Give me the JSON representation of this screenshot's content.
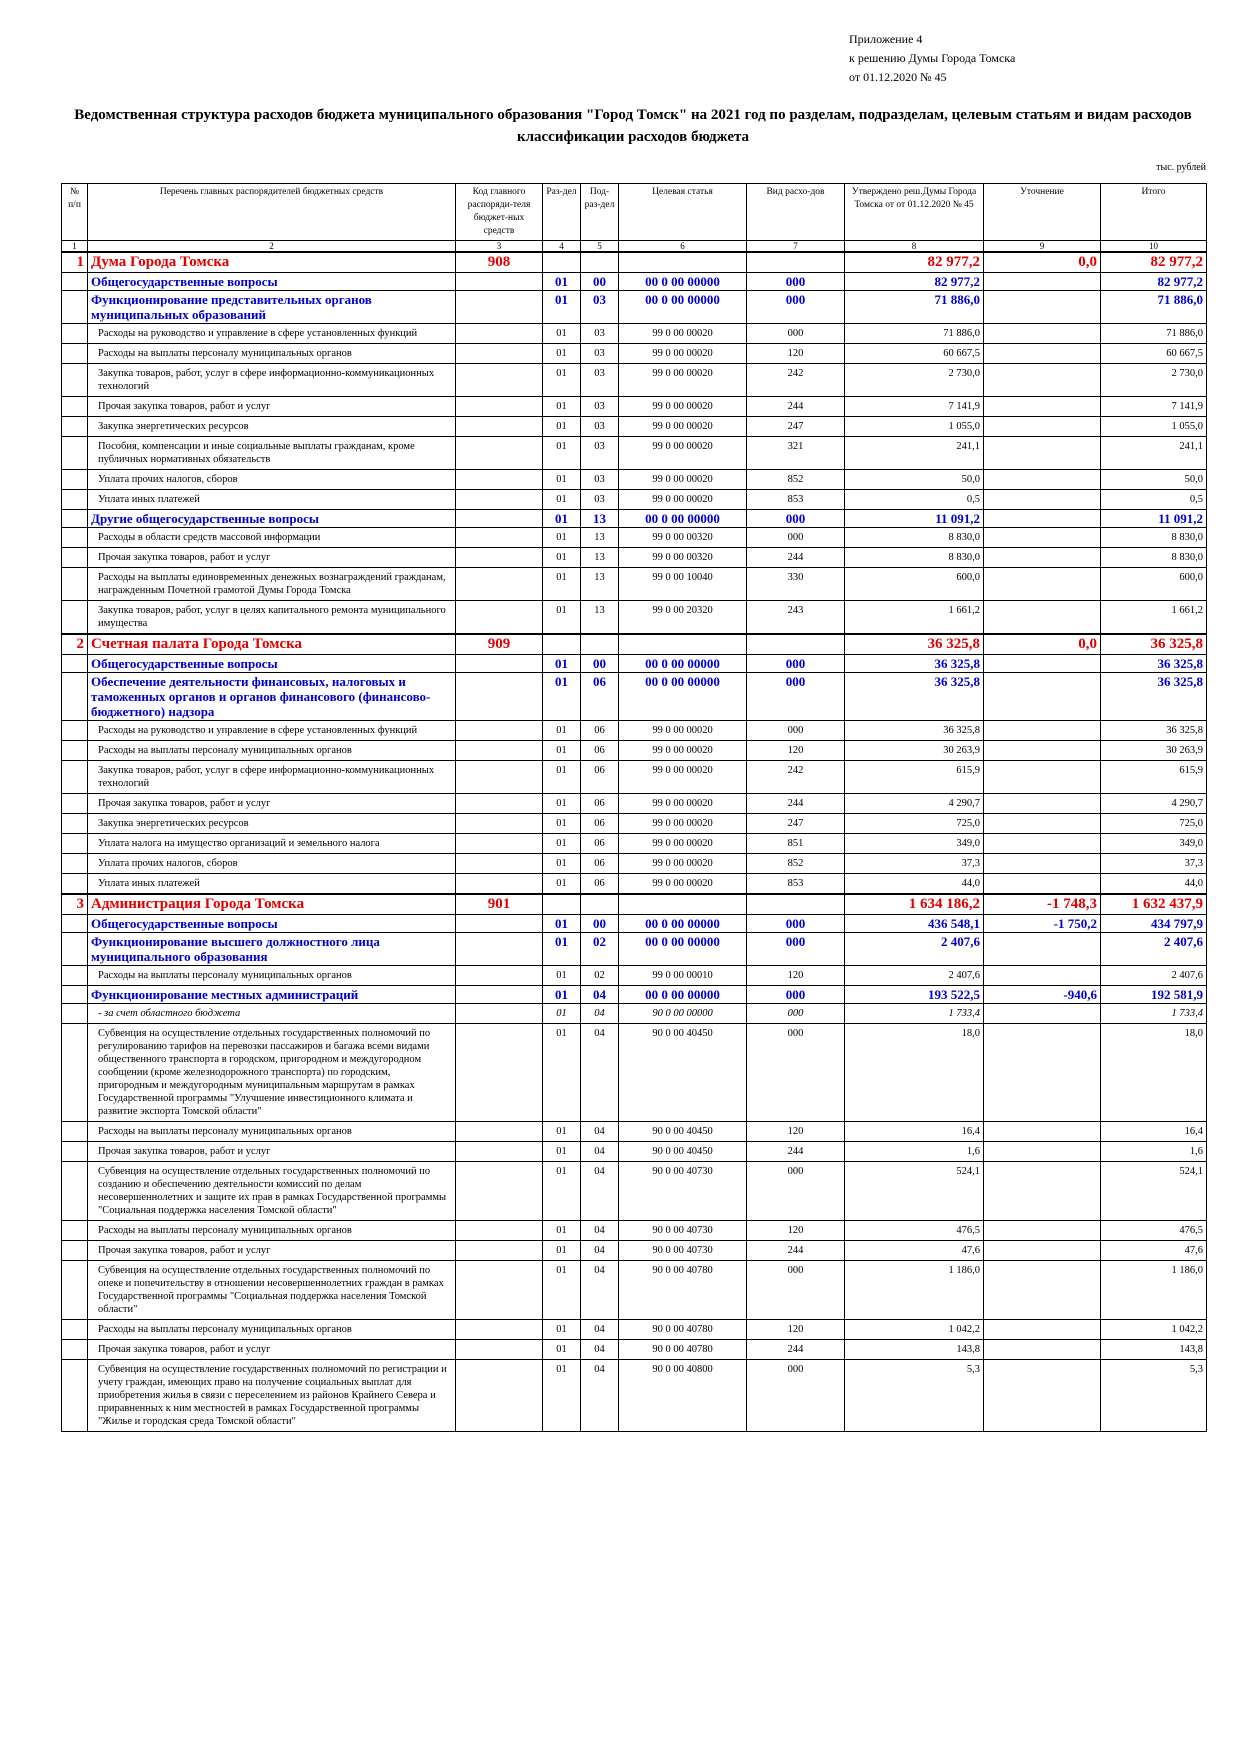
{
  "header": {
    "lines": [
      "Приложение 4",
      "к решению Думы Города Томска",
      "от 01.12.2020 № 45"
    ],
    "title": "Ведомственная структура расходов бюджета муниципального образования \"Город Томск\" на 2021 год по разделам, подразделам, целевым статьям и видам расходов классификации расходов бюджета",
    "unit": "тыс. рублей"
  },
  "table": {
    "columns": [
      "№ п/п",
      "Перечень главных распорядителей бюджетных средств",
      "Код главного распоряди-теля бюджет-ных средств",
      "Раз-дел",
      "Под-раз-дел",
      "Целевая статья",
      "Вид расхо-дов",
      "Утверждено реш.Думы Города Томска от от 01.12.2020 № 45",
      "Уточнение",
      "Итого"
    ],
    "column_numbers": [
      1,
      2,
      3,
      4,
      5,
      6,
      7,
      8,
      9,
      10
    ],
    "rows": [
      {
        "color": "#e00000",
        "cells": [
          "1",
          "Дума Города Томска",
          "908",
          null,
          null,
          null,
          null,
          "82 977,2",
          "0,0",
          "82 977,2"
        ]
      },
      {
        "color": "#0000cc",
        "cells": [
          null,
          "Общегосударственные вопросы",
          null,
          "01",
          "00",
          "00 0 00 00000",
          "000",
          "82 977,2",
          null,
          "82 977,2"
        ]
      },
      {
        "color": "#0000cc",
        "cells": [
          null,
          "Функционирование представительных органов муниципальных образований",
          null,
          "01",
          "03",
          "00 0 00 00000",
          "000",
          "71 886,0",
          null,
          "71 886,0"
        ]
      },
      {
        "cells": [
          null,
          "Расходы на руководство и управление в сфере установленных функций",
          null,
          "01",
          "03",
          "99 0 00 00020",
          "000",
          "71 886,0",
          null,
          "71 886,0"
        ]
      },
      {
        "cells": [
          null,
          "Расходы на выплаты персоналу муниципальных органов",
          null,
          "01",
          "03",
          "99 0 00 00020",
          "120",
          "60 667,5",
          null,
          "60 667,5"
        ]
      },
      {
        "cells": [
          null,
          "Закупка товаров, работ, услуг в сфере информационно-коммуникационных технологий",
          null,
          "01",
          "03",
          "99 0 00 00020",
          "242",
          "2 730,0",
          null,
          "2 730,0"
        ]
      },
      {
        "cells": [
          null,
          "Прочая закупка товаров, работ и услуг",
          null,
          "01",
          "03",
          "99 0 00 00020",
          "244",
          "7 141,9",
          null,
          "7 141,9"
        ]
      },
      {
        "cells": [
          null,
          "Закупка энергетических ресурсов",
          null,
          "01",
          "03",
          "99 0 00 00020",
          "247",
          "1 055,0",
          null,
          "1 055,0"
        ]
      },
      {
        "cells": [
          null,
          "Пособия, компенсации и иные социальные выплаты гражданам, кроме публичных нормативных обязательств",
          null,
          "01",
          "03",
          "99 0 00 00020",
          "321",
          "241,1",
          null,
          "241,1"
        ]
      },
      {
        "cells": [
          null,
          "Уплата прочих налогов, сборов",
          null,
          "01",
          "03",
          "99 0 00 00020",
          "852",
          "50,0",
          null,
          "50,0"
        ]
      },
      {
        "cells": [
          null,
          "Уплата иных платежей",
          null,
          "01",
          "03",
          "99 0 00 00020",
          "853",
          "0,5",
          null,
          "0,5"
        ]
      },
      {
        "color": "#0000cc",
        "cells": [
          null,
          "Другие общегосударственные вопросы",
          null,
          "01",
          "13",
          "00 0 00 00000",
          "000",
          "11 091,2",
          null,
          "11 091,2"
        ]
      },
      {
        "cells": [
          null,
          "Расходы в области средств массовой информации",
          null,
          "01",
          "13",
          "99 0 00 00320",
          "000",
          "8 830,0",
          null,
          "8 830,0"
        ]
      },
      {
        "cells": [
          null,
          "Прочая закупка товаров, работ и услуг",
          null,
          "01",
          "13",
          "99 0 00 00320",
          "244",
          "8 830,0",
          null,
          "8 830,0"
        ]
      },
      {
        "cells": [
          null,
          "Расходы на выплаты единовременных денежных вознаграждений гражданам, награжденным Почетной грамотой Думы Города Томска",
          null,
          "01",
          "13",
          "99 0 00 10040",
          "330",
          "600,0",
          null,
          "600,0"
        ]
      },
      {
        "cells": [
          null,
          "Закупка товаров, работ, услуг в целях капитального ремонта муниципального имущества",
          null,
          "01",
          "13",
          "99 0 00 20320",
          "243",
          "1 661,2",
          null,
          "1 661,2"
        ]
      },
      {
        "color": "#e00000",
        "cells": [
          "2",
          "Счетная палата Города Томска",
          "909",
          null,
          null,
          null,
          null,
          "36 325,8",
          "0,0",
          "36 325,8"
        ]
      },
      {
        "color": "#0000cc",
        "cells": [
          null,
          "Общегосударственные вопросы",
          null,
          "01",
          "00",
          "00 0 00 00000",
          "000",
          "36 325,8",
          null,
          "36 325,8"
        ]
      },
      {
        "color": "#0000cc",
        "cells": [
          null,
          "Обеспечение деятельности финансовых, налоговых и таможенных органов и органов финансового (финансово-бюджетного) надзора",
          null,
          "01",
          "06",
          "00 0 00 00000",
          "000",
          "36 325,8",
          null,
          "36 325,8"
        ]
      },
      {
        "cells": [
          null,
          "Расходы на руководство и управление в сфере установленных функций",
          null,
          "01",
          "06",
          "99 0 00 00020",
          "000",
          "36 325,8",
          null,
          "36 325,8"
        ]
      },
      {
        "cells": [
          null,
          "Расходы на выплаты персоналу муниципальных органов",
          null,
          "01",
          "06",
          "99 0 00 00020",
          "120",
          "30 263,9",
          null,
          "30 263,9"
        ]
      },
      {
        "cells": [
          null,
          "Закупка товаров, работ, услуг в сфере информационно-коммуникационных технологий",
          null,
          "01",
          "06",
          "99 0 00 00020",
          "242",
          "615,9",
          null,
          "615,9"
        ]
      },
      {
        "cells": [
          null,
          "Прочая закупка товаров, работ и услуг",
          null,
          "01",
          "06",
          "99 0 00 00020",
          "244",
          "4 290,7",
          null,
          "4 290,7"
        ]
      },
      {
        "cells": [
          null,
          "Закупка энергетических ресурсов",
          null,
          "01",
          "06",
          "99 0 00 00020",
          "247",
          "725,0",
          null,
          "725,0"
        ]
      },
      {
        "cells": [
          null,
          "Уплата налога на имущество организаций и земельного налога",
          null,
          "01",
          "06",
          "99 0 00 00020",
          "851",
          "349,0",
          null,
          "349,0"
        ]
      },
      {
        "cells": [
          null,
          "Уплата прочих налогов, сборов",
          null,
          "01",
          "06",
          "99 0 00 00020",
          "852",
          "37,3",
          null,
          "37,3"
        ]
      },
      {
        "cells": [
          null,
          "Уплата иных платежей",
          null,
          "01",
          "06",
          "99 0 00 00020",
          "853",
          "44,0",
          null,
          "44,0"
        ]
      },
      {
        "color": "#e00000",
        "cells": [
          "3",
          "Администрация Города Томска",
          "901",
          null,
          null,
          null,
          null,
          "1 634 186,2",
          "-1 748,3",
          "1 632 437,9"
        ]
      },
      {
        "color": "#0000cc",
        "cells": [
          null,
          "Общегосударственные вопросы",
          null,
          "01",
          "00",
          "00 0 00 00000",
          "000",
          "436 548,1",
          "-1 750,2",
          "434 797,9"
        ]
      },
      {
        "color": "#0000cc",
        "cells": [
          null,
          "Функционирование высшего должностного лица муниципального образования",
          null,
          "01",
          "02",
          "00 0 00 00000",
          "000",
          "2 407,6",
          null,
          "2 407,6"
        ]
      },
      {
        "cells": [
          null,
          "Расходы на выплаты персоналу муниципальных органов",
          null,
          "01",
          "02",
          "99 0 00 00010",
          "120",
          "2 407,6",
          null,
          "2 407,6"
        ]
      },
      {
        "color": "#0000cc",
        "cells": [
          null,
          "Функционирование местных администраций",
          null,
          "01",
          "04",
          "00 0 00 00000",
          "000",
          "193 522,5",
          "-940,6",
          "192 581,9"
        ]
      },
      {
        "italic": true,
        "cells": [
          null,
          "- за счет областного бюджета",
          null,
          "01",
          "04",
          "90 0 00 00000",
          "000",
          "1 733,4",
          null,
          "1 733,4"
        ]
      },
      {
        "cells": [
          null,
          "Субвенция на осуществление отдельных государственных полномочий по регулированию тарифов на перевозки пассажиров и багажа всеми видами общественного транспорта в городском, пригородном и междугородном сообщении (кроме железнодорожного транспорта) по городским, пригородным и междугородным муниципальным маршрутам в рамках Государственной программы \"Улучшение инвестиционного климата и развитие экспорта Томской области\"",
          null,
          "01",
          "04",
          "90 0 00 40450",
          "000",
          "18,0",
          null,
          "18,0"
        ]
      },
      {
        "cells": [
          null,
          "Расходы на выплаты персоналу муниципальных органов",
          null,
          "01",
          "04",
          "90 0 00 40450",
          "120",
          "16,4",
          null,
          "16,4"
        ]
      },
      {
        "cells": [
          null,
          "Прочая закупка товаров, работ и услуг",
          null,
          "01",
          "04",
          "90 0 00 40450",
          "244",
          "1,6",
          null,
          "1,6"
        ]
      },
      {
        "cells": [
          null,
          "Субвенция на осуществление отдельных государственных полномочий по созданию и обеспечению деятельности комиссий по делам несовершеннолетних и защите их прав в рамках Государственной программы \"Социальная поддержка населения Томской области\"",
          null,
          "01",
          "04",
          "90 0 00 40730",
          "000",
          "524,1",
          null,
          "524,1"
        ]
      },
      {
        "cells": [
          null,
          "Расходы на выплаты персоналу муниципальных органов",
          null,
          "01",
          "04",
          "90 0 00 40730",
          "120",
          "476,5",
          null,
          "476,5"
        ]
      },
      {
        "cells": [
          null,
          "Прочая закупка товаров, работ и услуг",
          null,
          "01",
          "04",
          "90 0 00 40730",
          "244",
          "47,6",
          null,
          "47,6"
        ]
      },
      {
        "cells": [
          null,
          "Субвенция на осуществление отдельных государственных полномочий по опеке и попечительству в отношении несовершеннолетних граждан в рамках Государственной программы \"Социальная поддержка населения Томской области\"",
          null,
          "01",
          "04",
          "90 0 00 40780",
          "000",
          "1 186,0",
          null,
          "1 186,0"
        ]
      },
      {
        "cells": [
          null,
          "Расходы на выплаты персоналу муниципальных органов",
          null,
          "01",
          "04",
          "90 0 00 40780",
          "120",
          "1 042,2",
          null,
          "1 042,2"
        ]
      },
      {
        "cells": [
          null,
          "Прочая закупка товаров, работ и услуг",
          null,
          "01",
          "04",
          "90 0 00 40780",
          "244",
          "143,8",
          null,
          "143,8"
        ]
      },
      {
        "cells": [
          null,
          "Субвенция на осуществление государственных полномочий по регистрации и учету граждан, имеющих право на получение социальных выплат для приобретения жилья в связи с переселением из районов Крайнего Севера и приравненных к ним местностей в рамках Государственной программы \"Жилье и городская среда Томской области\"",
          null,
          "01",
          "04",
          "90 0 00 40800",
          "000",
          "5,3",
          null,
          "5,3"
        ]
      }
    ]
  }
}
